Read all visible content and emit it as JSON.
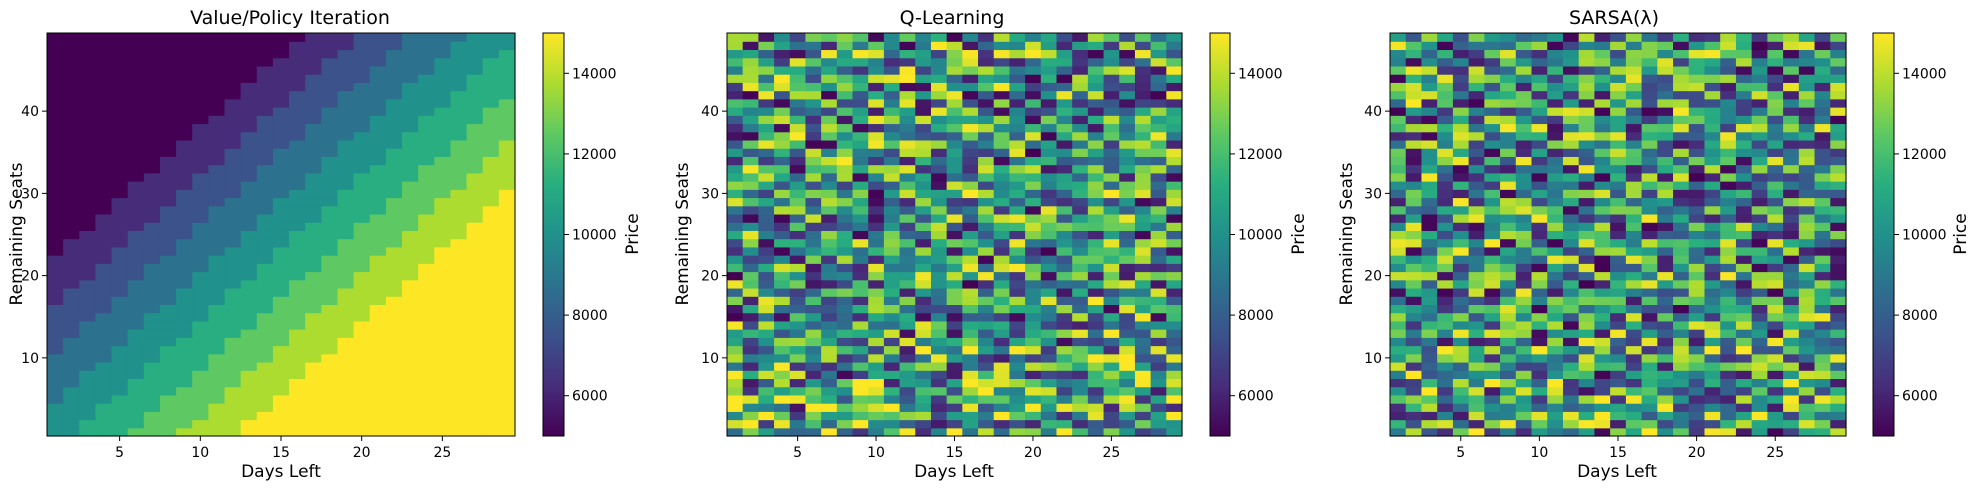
{
  "chart_data": [
    {
      "type": "heatmap",
      "title": "Value/Policy Iteration",
      "xlabel": "Days Left",
      "ylabel": "Remaining Seats",
      "colorbar_label": "Price",
      "colormap": "viridis",
      "x_range": [
        1,
        29
      ],
      "y_range": [
        1,
        49
      ],
      "x_ticks": [
        5,
        10,
        15,
        20,
        25
      ],
      "y_ticks": [
        10,
        20,
        30,
        40
      ],
      "color_range": [
        5000,
        15000
      ],
      "colorbar_ticks": [
        6000,
        8000,
        10000,
        12000,
        14000
      ],
      "pattern": "smooth",
      "description_values": {
        "low_price_region": "many seats, few days left",
        "high_price_region": "few seats, many days left"
      },
      "seed": 0
    },
    {
      "type": "heatmap",
      "title": "Q-Learning",
      "xlabel": "Days Left",
      "ylabel": "Remaining Seats",
      "colorbar_label": "Price",
      "colormap": "viridis",
      "x_range": [
        1,
        29
      ],
      "y_range": [
        1,
        49
      ],
      "x_ticks": [
        5,
        10,
        15,
        20,
        25
      ],
      "y_ticks": [
        10,
        20,
        30,
        40
      ],
      "color_range": [
        5000,
        15000
      ],
      "colorbar_ticks": [
        6000,
        8000,
        10000,
        12000,
        14000
      ],
      "pattern": "noisy",
      "seed": 7
    },
    {
      "type": "heatmap",
      "title": "SARSA(λ)",
      "xlabel": "Days Left",
      "ylabel": "Remaining Seats",
      "colorbar_label": "Price",
      "colormap": "viridis",
      "x_range": [
        1,
        29
      ],
      "y_range": [
        1,
        49
      ],
      "x_ticks": [
        5,
        10,
        15,
        20,
        25
      ],
      "y_ticks": [
        10,
        20,
        30,
        40
      ],
      "color_range": [
        5000,
        15000
      ],
      "colorbar_ticks": [
        6000,
        8000,
        10000,
        12000,
        14000
      ],
      "pattern": "noisy",
      "seed": 23
    }
  ]
}
